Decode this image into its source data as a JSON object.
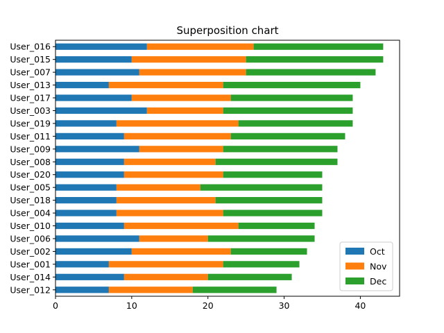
{
  "chart_data": {
    "type": "bar",
    "orientation": "horizontal",
    "stacked": true,
    "title": "Superposition chart",
    "xlabel": "",
    "ylabel": "",
    "xlim": [
      0,
      45.15
    ],
    "xticks": [
      0,
      10,
      20,
      30,
      40
    ],
    "grid": false,
    "legend_position": "lower-right",
    "categories": [
      "User_016",
      "User_015",
      "User_007",
      "User_013",
      "User_017",
      "User_003",
      "User_019",
      "User_011",
      "User_009",
      "User_008",
      "User_020",
      "User_005",
      "User_018",
      "User_004",
      "User_010",
      "User_006",
      "User_002",
      "User_001",
      "User_014",
      "User_012"
    ],
    "series": [
      {
        "name": "Oct",
        "color": "#1f77b4",
        "values": [
          12,
          10,
          11,
          7,
          10,
          12,
          8,
          9,
          11,
          9,
          9,
          8,
          8,
          8,
          9,
          11,
          10,
          7,
          9,
          7
        ]
      },
      {
        "name": "Nov",
        "color": "#ff7f0e",
        "values": [
          14,
          15,
          14,
          15,
          13,
          10,
          16,
          14,
          11,
          12,
          13,
          11,
          13,
          14,
          15,
          9,
          13,
          15,
          11,
          11
        ]
      },
      {
        "name": "Dec",
        "color": "#2ca02c",
        "values": [
          17,
          18,
          17,
          18,
          16,
          17,
          15,
          15,
          15,
          16,
          13,
          16,
          14,
          13,
          10,
          14,
          10,
          10,
          11,
          11
        ]
      }
    ]
  }
}
